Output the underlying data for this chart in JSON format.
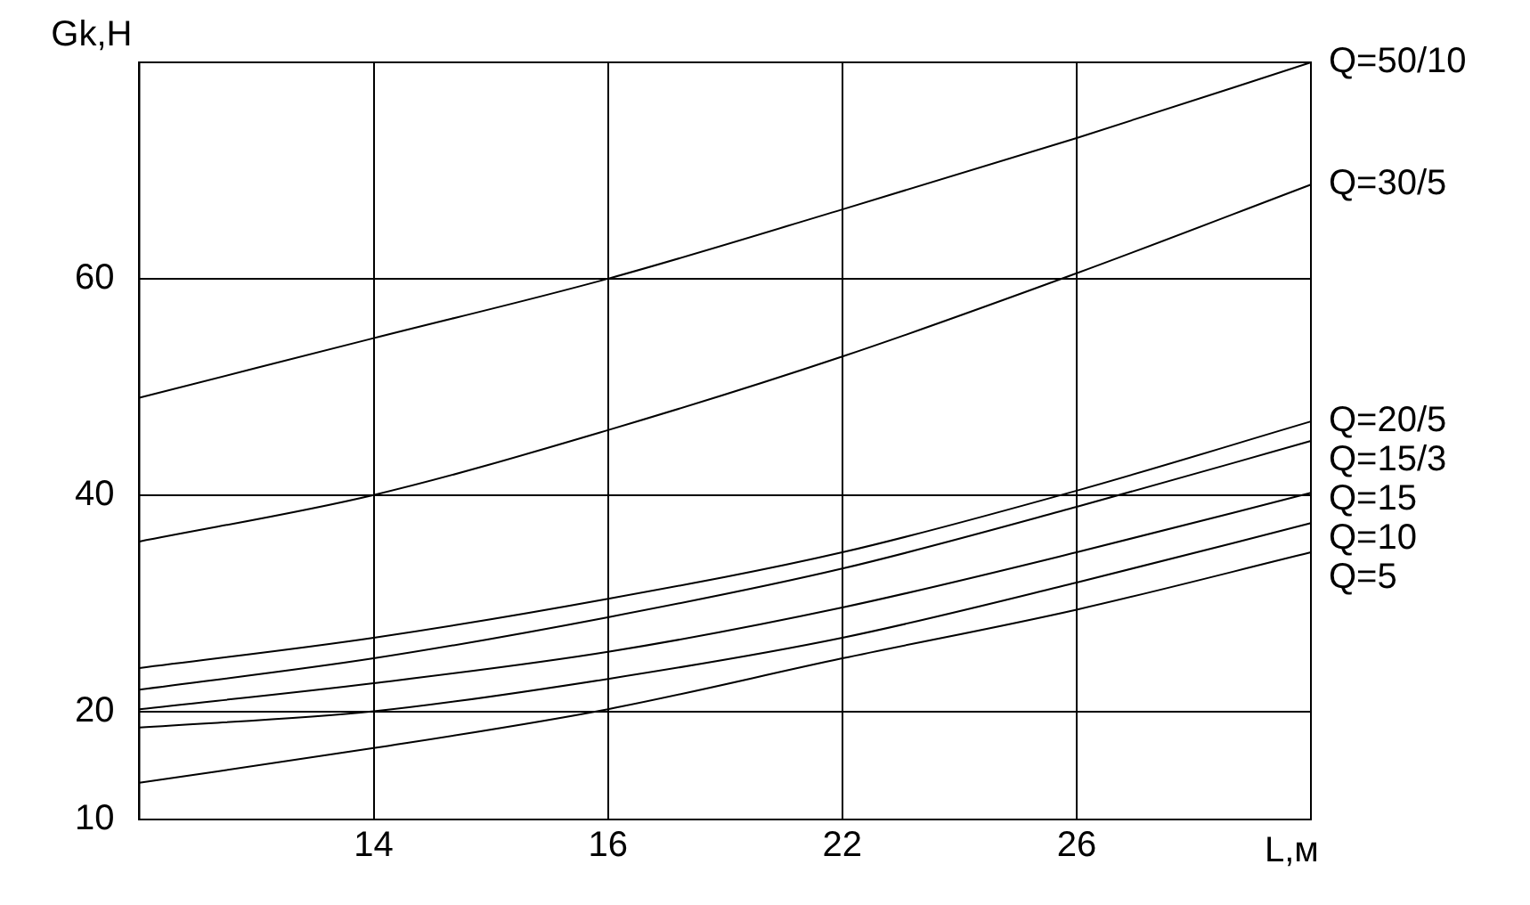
{
  "chart_data": {
    "type": "line",
    "xlabel": "L,м",
    "ylabel": "Gk,Н",
    "categories": [
      null,
      "14",
      "16",
      "22",
      "26",
      null
    ],
    "ylim": [
      10,
      80
    ],
    "yticks": [
      10,
      20,
      40,
      60,
      {
        "value": 80,
        "label": null
      }
    ],
    "grid": true,
    "legend": false,
    "marker": "none",
    "line_style": "solid",
    "series": [
      {
        "name": "Q=50/10",
        "color": "#000000",
        "values": [
          49,
          54.5,
          60,
          66.4,
          73,
          80
        ]
      },
      {
        "name": "Q=30/5",
        "color": "#000000",
        "values": [
          35.7,
          40,
          46,
          52.8,
          60.5,
          68.7
        ]
      },
      {
        "name": "Q=20/5",
        "color": "#000000",
        "values": [
          24,
          26.8,
          30.4,
          34.7,
          40.4,
          46.8
        ]
      },
      {
        "name": "Q=15/3",
        "color": "#000000",
        "values": [
          22,
          24.9,
          28.7,
          33.2,
          38.9,
          45
        ]
      },
      {
        "name": "Q=15",
        "color": "#000000",
        "values": [
          20.2,
          22.6,
          25.5,
          29.6,
          34.7,
          40.2
        ]
      },
      {
        "name": "Q=10",
        "color": "#000000",
        "values": [
          18.5,
          20,
          23,
          26.8,
          31.9,
          37.4
        ]
      },
      {
        "name": "Q=5",
        "color": "#000000",
        "values": [
          13.4,
          16.6,
          20.2,
          24.9,
          29.4,
          34.7
        ]
      }
    ]
  }
}
